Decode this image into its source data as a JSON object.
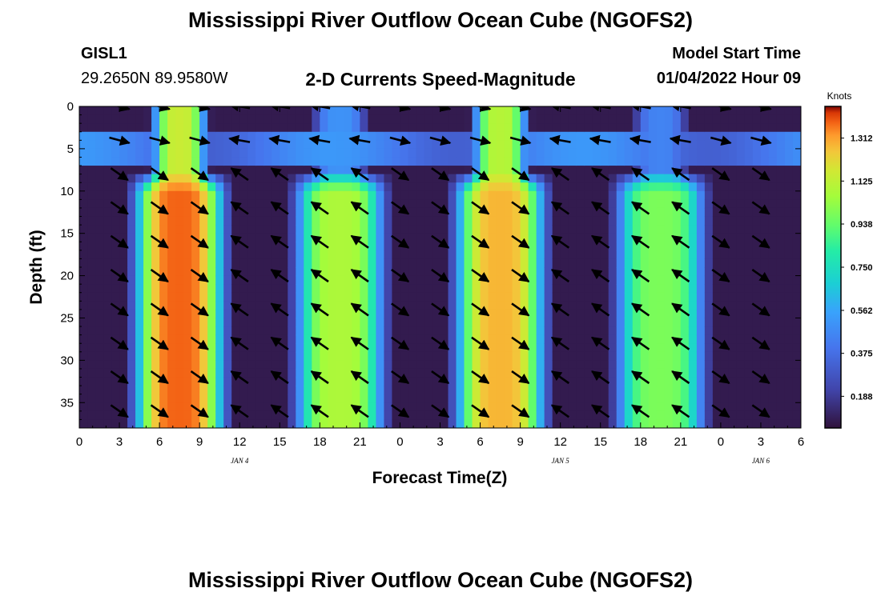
{
  "header": {
    "title": "Mississippi River Outflow Ocean Cube (NGOFS2)",
    "station_id": "GISL1",
    "station_coords": "29.2650N  89.9580W",
    "subtitle": "2-D Currents Speed-Magnitude",
    "model_start_label": "Model Start Time",
    "model_start_value": "01/04/2022 Hour 09",
    "footer_title": "Mississippi River Outflow Ocean Cube (NGOFS2)"
  },
  "chart_data": {
    "type": "heatmap",
    "title": "2-D Currents Speed-Magnitude",
    "xlabel": "Forecast Time(Z)",
    "ylabel": "Depth (ft)",
    "colorbar_label": "Knots",
    "x_hours_range": [
      0,
      54
    ],
    "y_depth_range": [
      0,
      38
    ],
    "x_tick_hours": [
      0,
      3,
      6,
      9,
      12,
      15,
      18,
      21,
      24,
      27,
      30,
      33,
      36,
      39,
      42,
      45,
      48,
      51,
      54
    ],
    "x_tick_labels": [
      "0",
      "3",
      "6",
      "9",
      "12",
      "15",
      "18",
      "21",
      "0",
      "3",
      "6",
      "9",
      "12",
      "15",
      "18",
      "21",
      "0",
      "3",
      "6"
    ],
    "y_ticks": [
      0,
      5,
      10,
      15,
      20,
      25,
      30,
      35
    ],
    "y_tick_labels": [
      "0",
      "5",
      "10",
      "15",
      "20",
      "25",
      "30",
      "35"
    ],
    "date_labels": [
      {
        "text": "JAN 4",
        "hour": 12
      },
      {
        "text": "JAN 5",
        "hour": 36
      },
      {
        "text": "JAN 6",
        "hour": 51
      }
    ],
    "colorbar_range": [
      0.05,
      1.45
    ],
    "colorbar_ticks": [
      0.188,
      0.375,
      0.562,
      0.75,
      0.938,
      1.125,
      1.312
    ],
    "colorbar_tick_labels": [
      "0.188",
      "0.375",
      "0.562",
      "0.750",
      "0.938",
      "1.125",
      "1.312"
    ],
    "speed_peaks": [
      {
        "hour": 7.5,
        "deep_knots": 1.38,
        "surface_knots": 1.15
      },
      {
        "hour": 19.5,
        "deep_knots": 1.08,
        "surface_knots": 0.5
      },
      {
        "hour": 31.5,
        "deep_knots": 1.28,
        "surface_knots": 1.1
      },
      {
        "hour": 43.5,
        "deep_knots": 0.98,
        "surface_knots": 0.45
      }
    ],
    "slack_minima_hours": [
      0,
      14.5,
      26.5,
      38.5
    ],
    "vector_time_hours": [
      3,
      6,
      9,
      12,
      15,
      18,
      21,
      24,
      27,
      30,
      33,
      36,
      39,
      42,
      45,
      48,
      51
    ],
    "vector_depths_ft": [
      0,
      4,
      8,
      12,
      16,
      20,
      24,
      28,
      32,
      36
    ]
  }
}
